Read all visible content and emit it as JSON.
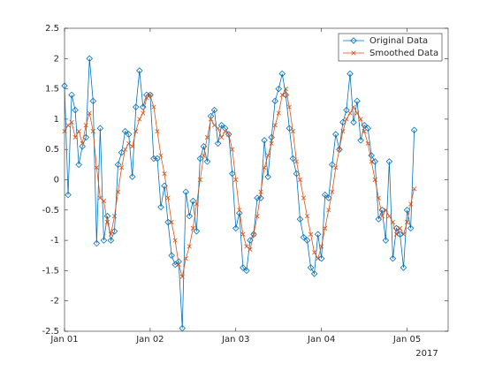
{
  "chart_data": {
    "type": "line",
    "x": [
      "2017-01-01 00:00",
      "2017-01-01 01:00",
      "2017-01-01 02:00",
      "2017-01-01 03:00",
      "2017-01-01 04:00",
      "2017-01-01 05:00",
      "2017-01-01 06:00",
      "2017-01-01 07:00",
      "2017-01-01 08:00",
      "2017-01-01 09:00",
      "2017-01-01 10:00",
      "2017-01-01 11:00",
      "2017-01-01 12:00",
      "2017-01-01 13:00",
      "2017-01-01 14:00",
      "2017-01-01 15:00",
      "2017-01-01 16:00",
      "2017-01-01 17:00",
      "2017-01-01 18:00",
      "2017-01-01 19:00",
      "2017-01-01 20:00",
      "2017-01-01 21:00",
      "2017-01-01 22:00",
      "2017-01-01 23:00",
      "2017-01-02 00:00",
      "2017-01-02 01:00",
      "2017-01-02 02:00",
      "2017-01-02 03:00",
      "2017-01-02 04:00",
      "2017-01-02 05:00",
      "2017-01-02 06:00",
      "2017-01-02 07:00",
      "2017-01-02 08:00",
      "2017-01-02 09:00",
      "2017-01-02 10:00",
      "2017-01-02 11:00",
      "2017-01-02 12:00",
      "2017-01-02 13:00",
      "2017-01-02 14:00",
      "2017-01-02 15:00",
      "2017-01-02 16:00",
      "2017-01-02 17:00",
      "2017-01-02 18:00",
      "2017-01-02 19:00",
      "2017-01-02 20:00",
      "2017-01-02 21:00",
      "2017-01-02 22:00",
      "2017-01-02 23:00",
      "2017-01-03 00:00",
      "2017-01-03 01:00",
      "2017-01-03 02:00",
      "2017-01-03 03:00",
      "2017-01-03 04:00",
      "2017-01-03 05:00",
      "2017-01-03 06:00",
      "2017-01-03 07:00",
      "2017-01-03 08:00",
      "2017-01-03 09:00",
      "2017-01-03 10:00",
      "2017-01-03 11:00",
      "2017-01-03 12:00",
      "2017-01-03 13:00",
      "2017-01-03 14:00",
      "2017-01-03 15:00",
      "2017-01-03 16:00",
      "2017-01-03 17:00",
      "2017-01-03 18:00",
      "2017-01-03 19:00",
      "2017-01-03 20:00",
      "2017-01-03 21:00",
      "2017-01-03 22:00",
      "2017-01-03 23:00",
      "2017-01-04 00:00",
      "2017-01-04 01:00",
      "2017-01-04 02:00",
      "2017-01-04 03:00",
      "2017-01-04 04:00",
      "2017-01-04 05:00",
      "2017-01-04 06:00",
      "2017-01-04 07:00",
      "2017-01-04 08:00",
      "2017-01-04 09:00",
      "2017-01-04 10:00",
      "2017-01-04 11:00",
      "2017-01-04 12:00",
      "2017-01-04 13:00",
      "2017-01-04 14:00",
      "2017-01-04 15:00",
      "2017-01-04 16:00",
      "2017-01-04 17:00",
      "2017-01-04 18:00",
      "2017-01-04 19:00",
      "2017-01-04 20:00",
      "2017-01-04 21:00",
      "2017-01-04 22:00",
      "2017-01-04 23:00",
      "2017-01-05 00:00",
      "2017-01-05 01:00",
      "2017-01-05 02:00"
    ],
    "series": [
      {
        "name": "Original Data",
        "color": "#0072bd",
        "marker": "diamond",
        "values": [
          1.55,
          -0.25,
          1.4,
          1.15,
          0.25,
          0.55,
          0.7,
          2.0,
          1.3,
          -1.05,
          0.85,
          -1.0,
          -0.6,
          -1.0,
          -0.85,
          0.25,
          0.45,
          0.8,
          0.75,
          0.05,
          1.2,
          1.8,
          1.2,
          1.4,
          1.4,
          0.35,
          0.35,
          -0.45,
          -0.1,
          -0.7,
          -1.25,
          -1.4,
          -1.35,
          -2.45,
          -0.2,
          -0.6,
          -0.35,
          -0.85,
          0.35,
          0.55,
          0.3,
          1.05,
          1.15,
          0.6,
          0.9,
          0.85,
          0.75,
          0.1,
          -0.8,
          -0.55,
          -1.45,
          -1.5,
          -1.0,
          -0.9,
          -0.3,
          -0.3,
          0.65,
          0.05,
          0.7,
          1.3,
          1.5,
          1.75,
          1.4,
          0.85,
          0.35,
          0.1,
          -0.65,
          -0.95,
          -1.0,
          -1.45,
          -1.55,
          -0.9,
          -1.3,
          -0.25,
          -0.3,
          0.25,
          0.75,
          0.5,
          0.95,
          1.15,
          1.75,
          0.95,
          1.3,
          0.65,
          0.9,
          0.85,
          0.4,
          0.3,
          -0.65,
          -0.5,
          -1.0,
          0.3,
          -1.3,
          -0.8,
          -0.9,
          -1.45,
          -0.5,
          -0.8,
          0.82
        ]
      },
      {
        "name": "Smoothed Data",
        "color": "#d95319",
        "marker": "x",
        "values": [
          0.8,
          0.9,
          0.95,
          0.7,
          0.8,
          0.6,
          0.9,
          1.1,
          0.8,
          0.2,
          -0.3,
          -0.35,
          -0.7,
          -0.9,
          -0.6,
          -0.2,
          0.2,
          0.5,
          0.6,
          0.55,
          0.8,
          1.0,
          1.1,
          1.35,
          1.4,
          1.2,
          0.8,
          0.4,
          0.1,
          -0.3,
          -0.7,
          -1.0,
          -1.4,
          -1.6,
          -1.3,
          -1.1,
          -0.8,
          -0.4,
          0,
          0.4,
          0.7,
          1.0,
          0.9,
          0.85,
          0.7,
          0.8,
          0.75,
          0.5,
          0.0,
          -0.5,
          -0.9,
          -1.1,
          -1.15,
          -0.9,
          -0.6,
          -0.2,
          0.2,
          0.4,
          0.6,
          0.9,
          1.1,
          1.4,
          1.5,
          1.2,
          0.8,
          0.3,
          0.0,
          -0.3,
          -0.6,
          -0.9,
          -1.2,
          -1.3,
          -1.1,
          -0.8,
          -0.5,
          -0.2,
          0.2,
          0.5,
          0.8,
          1.0,
          1.1,
          1.2,
          1.1,
          1.0,
          0.8,
          0.6,
          0.3,
          0.0,
          -0.3,
          -0.6,
          -0.5,
          -0.6,
          -0.7,
          -0.9,
          -0.8,
          -0.9,
          -0.7,
          -0.4,
          -0.15
        ]
      }
    ],
    "xlim": [
      "2017-01-01 00:00",
      "2017-01-05 11:30"
    ],
    "xticks": [
      {
        "value": "2017-01-01 00:00",
        "label": "Jan 01"
      },
      {
        "value": "2017-01-02 00:00",
        "label": "Jan 02"
      },
      {
        "value": "2017-01-03 00:00",
        "label": "Jan 03"
      },
      {
        "value": "2017-01-04 00:00",
        "label": "Jan 04"
      },
      {
        "value": "2017-01-05 00:00",
        "label": "Jan 05"
      }
    ],
    "x_secondary_label": "2017",
    "ylim": [
      -2.5,
      2.5
    ],
    "yticks": [
      -2.5,
      -2,
      -1.5,
      -1,
      -0.5,
      0,
      0.5,
      1,
      1.5,
      2,
      2.5
    ],
    "grid": false,
    "legend": "northeast"
  }
}
